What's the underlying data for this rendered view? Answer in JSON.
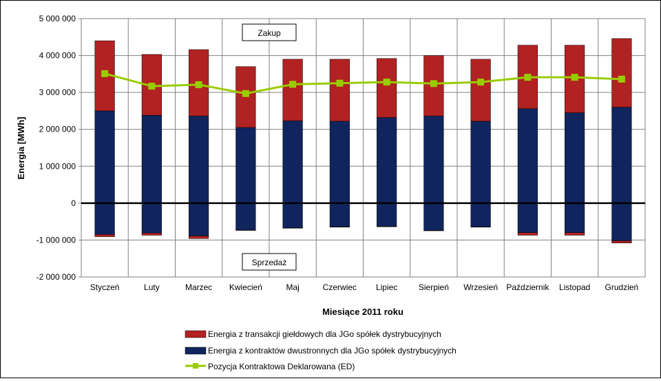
{
  "chart_data": {
    "type": "bar",
    "stacked": true,
    "xlabel": "Miesiące 2011  roku",
    "ylabel": "Energia  [MWh]",
    "ylim": [
      -2000000,
      5000000
    ],
    "ytick_values": [
      5000000,
      4000000,
      3000000,
      2000000,
      1000000,
      0,
      -1000000,
      -2000000
    ],
    "yticks": [
      "5 000 000",
      "4 000 000",
      "3 000 000",
      "2 000 000",
      "1 000 000",
      "0",
      "-1 000 000",
      "-2 000 000"
    ],
    "grid": true,
    "legend_position": "bottom",
    "categories": [
      "Styczeń",
      "Luty",
      "Marzec",
      "Kwiecień",
      "Maj",
      "Czerwiec",
      "Lipiec",
      "Sierpień",
      "Wrzesień",
      "Październik",
      "Listopad",
      "Grudzień"
    ],
    "series": [
      {
        "name": "Energia z transakcji giełdowych dla JGo spółek dystrybucyjnych",
        "color": "#b22222",
        "positive": [
          1900000,
          1650000,
          1800000,
          1650000,
          1670000,
          1680000,
          1600000,
          1640000,
          1680000,
          1720000,
          1830000,
          1860000
        ],
        "negative": [
          -60000,
          -60000,
          -70000,
          -10000,
          -10000,
          -10000,
          -10000,
          -10000,
          -10000,
          -70000,
          -70000,
          -60000
        ]
      },
      {
        "name": "Energia z kontraktów dwustronnych dla JGo spółek dystrybucyjnych",
        "color": "#10255e",
        "positive": [
          2500000,
          2380000,
          2360000,
          2050000,
          2230000,
          2220000,
          2320000,
          2360000,
          2220000,
          2560000,
          2450000,
          2600000
        ],
        "negative": [
          -850000,
          -810000,
          -890000,
          -730000,
          -670000,
          -640000,
          -630000,
          -740000,
          -640000,
          -800000,
          -800000,
          -1020000
        ]
      },
      {
        "name": "Pozycja Kontraktowa Deklarowana (ED)",
        "type": "line",
        "color": "#99cc00",
        "values": [
          3510000,
          3170000,
          3210000,
          2970000,
          3220000,
          3250000,
          3280000,
          3240000,
          3280000,
          3410000,
          3410000,
          3360000
        ]
      }
    ],
    "annotations": [
      "Zakup",
      "Sprzedaż"
    ]
  }
}
